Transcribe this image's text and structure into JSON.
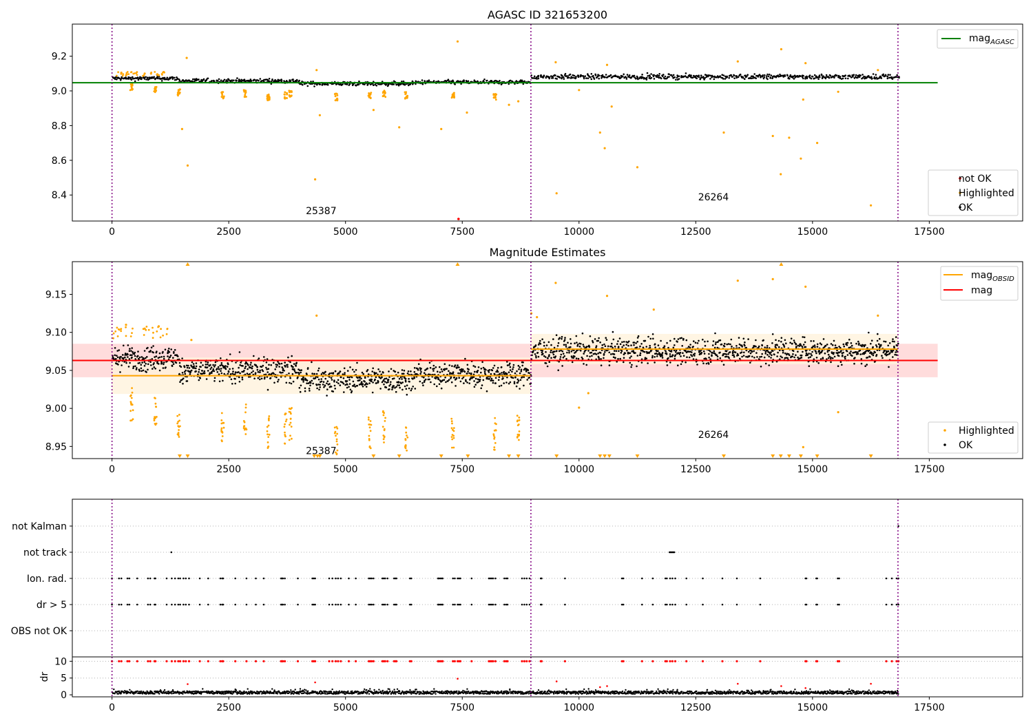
{
  "chart_data": [
    {
      "id": "top",
      "type": "scatter",
      "title": "AGASC ID 321653200",
      "xlim": [
        -850,
        19500
      ],
      "ylim": [
        8.25,
        9.385
      ],
      "xticks": [
        0,
        2500,
        5000,
        7500,
        10000,
        12500,
        15000,
        17500
      ],
      "xtick_labels": [
        "0",
        "2500",
        "5000",
        "7500",
        "10000",
        "12500",
        "15000",
        "17500"
      ],
      "yticks": [
        8.4,
        8.6,
        8.8,
        9.0,
        9.2
      ],
      "ytick_labels": [
        "8.4",
        "8.6",
        "8.8",
        "9.0",
        "9.2"
      ],
      "obsid_boundaries": [
        0,
        8970,
        16830
      ],
      "obsid_labels": [
        {
          "text": "25387",
          "x": 4150,
          "y": 8.29
        },
        {
          "text": "26264",
          "x": 12550,
          "y": 8.37
        }
      ],
      "agasc_line": {
        "name": "mag_AGASC",
        "value": 9.047,
        "x": [
          -850,
          17680
        ],
        "color": "#008000"
      },
      "ok_bands": [
        {
          "x0": 0,
          "x1": 1400,
          "mean": 9.072,
          "spread": 0.012
        },
        {
          "x0": 1420,
          "x1": 4000,
          "mean": 9.058,
          "spread": 0.012
        },
        {
          "x0": 4000,
          "x1": 6500,
          "mean": 9.042,
          "spread": 0.012
        },
        {
          "x0": 6500,
          "x1": 8970,
          "mean": 9.05,
          "spread": 0.012
        },
        {
          "x0": 8980,
          "x1": 16830,
          "mean": 9.082,
          "spread": 0.014
        }
      ],
      "highlighted_points": [
        [
          1600,
          9.19
        ],
        [
          1500,
          8.78
        ],
        [
          1620,
          8.57
        ],
        [
          4350,
          8.49
        ],
        [
          4380,
          9.12
        ],
        [
          4450,
          8.86
        ],
        [
          5600,
          8.89
        ],
        [
          6150,
          8.79
        ],
        [
          7050,
          8.78
        ],
        [
          7400,
          9.285
        ],
        [
          7600,
          8.875
        ],
        [
          8500,
          8.92
        ],
        [
          8700,
          8.94
        ],
        [
          9500,
          9.165
        ],
        [
          9520,
          8.41
        ],
        [
          10000,
          9.005
        ],
        [
          10450,
          8.76
        ],
        [
          10550,
          8.67
        ],
        [
          10600,
          9.15
        ],
        [
          10700,
          8.91
        ],
        [
          11250,
          8.56
        ],
        [
          13100,
          8.76
        ],
        [
          13400,
          9.17
        ],
        [
          14150,
          8.74
        ],
        [
          14320,
          8.52
        ],
        [
          14330,
          9.24
        ],
        [
          14500,
          8.73
        ],
        [
          14750,
          8.61
        ],
        [
          14800,
          8.95
        ],
        [
          14850,
          9.16
        ],
        [
          15100,
          8.7
        ],
        [
          15550,
          8.995
        ],
        [
          16250,
          8.34
        ],
        [
          200,
          9.105
        ],
        [
          300,
          9.09
        ],
        [
          700,
          9.1
        ],
        [
          1000,
          9.09
        ],
        [
          16400,
          9.12
        ]
      ],
      "dip_clusters": [
        [
          420,
          9.02
        ],
        [
          930,
          9.005
        ],
        [
          1430,
          8.99
        ],
        [
          2370,
          8.975
        ],
        [
          2850,
          8.985
        ],
        [
          3350,
          8.965
        ],
        [
          3720,
          8.975
        ],
        [
          3820,
          8.985
        ],
        [
          4800,
          8.965
        ],
        [
          5520,
          8.975
        ],
        [
          5830,
          8.985
        ],
        [
          6300,
          8.975
        ],
        [
          7300,
          8.975
        ],
        [
          8200,
          8.965
        ]
      ],
      "not_ok_points": [
        [
          7420,
          8.262
        ]
      ],
      "legend_top": [
        {
          "name": "mag",
          "subscript": "AGASC",
          "color": "#008000"
        }
      ],
      "legend_bottom": [
        {
          "name": "not OK",
          "color": "#ff0000"
        },
        {
          "name": "Highlighted",
          "color": "#ffa500"
        },
        {
          "name": "OK",
          "color": "#000000"
        }
      ]
    },
    {
      "id": "middle",
      "type": "scatter",
      "title": "Magnitude Estimates",
      "xlim": [
        -850,
        19500
      ],
      "ylim": [
        8.934,
        9.193
      ],
      "xticks": [
        0,
        2500,
        5000,
        7500,
        10000,
        12500,
        15000,
        17500
      ],
      "xtick_labels": [
        "0",
        "2500",
        "5000",
        "7500",
        "10000",
        "12500",
        "15000",
        "17500"
      ],
      "yticks": [
        8.95,
        9.0,
        9.05,
        9.1,
        9.15
      ],
      "ytick_labels": [
        "8.95",
        "9.00",
        "9.05",
        "9.10",
        "9.15"
      ],
      "obsid_boundaries": [
        0,
        8970,
        16830
      ],
      "obsid_labels": [
        {
          "text": "25387",
          "x": 4150,
          "y": 8.94
        },
        {
          "text": "26264",
          "x": 12550,
          "y": 8.961
        }
      ],
      "mag_line": {
        "name": "mag",
        "value": 9.063,
        "band": [
          9.041,
          9.085
        ],
        "x": [
          -850,
          17680
        ],
        "color": "#ff0000"
      },
      "obsid_mags": [
        {
          "x0": 0,
          "x1": 8970,
          "value": 9.043,
          "band": [
            9.019,
            9.067
          ]
        },
        {
          "x0": 8970,
          "x1": 16830,
          "value": 9.078,
          "band": [
            9.058,
            9.098
          ]
        }
      ],
      "ok_bands": [
        {
          "x0": 0,
          "x1": 1400,
          "mean": 9.066,
          "spread": 0.016
        },
        {
          "x0": 1420,
          "x1": 4000,
          "mean": 9.05,
          "spread": 0.016
        },
        {
          "x0": 4000,
          "x1": 6500,
          "mean": 9.038,
          "spread": 0.016
        },
        {
          "x0": 6500,
          "x1": 8970,
          "mean": 9.045,
          "spread": 0.016
        },
        {
          "x0": 8980,
          "x1": 16830,
          "mean": 9.076,
          "spread": 0.017
        }
      ],
      "highlighted_points": [
        [
          4380,
          9.122
        ],
        [
          9500,
          9.165
        ],
        [
          10000,
          9.001
        ],
        [
          10200,
          9.02
        ],
        [
          10600,
          9.148
        ],
        [
          13400,
          9.168
        ],
        [
          14150,
          9.17
        ],
        [
          14850,
          9.16
        ],
        [
          15550,
          8.995
        ],
        [
          14800,
          8.949
        ],
        [
          11600,
          9.13
        ],
        [
          300,
          9.11
        ],
        [
          700,
          9.105
        ],
        [
          1000,
          9.108
        ],
        [
          8980,
          9.125
        ],
        [
          9100,
          9.12
        ],
        [
          16400,
          9.122
        ],
        [
          1700,
          9.09
        ]
      ],
      "dip_clusters": [
        [
          420,
          9.005
        ],
        [
          930,
          8.995
        ],
        [
          1430,
          8.985
        ],
        [
          2370,
          8.975
        ],
        [
          2850,
          8.985
        ],
        [
          3350,
          8.97
        ],
        [
          3720,
          8.975
        ],
        [
          3820,
          8.98
        ],
        [
          4800,
          8.96
        ],
        [
          5520,
          8.97
        ],
        [
          5830,
          8.975
        ],
        [
          6300,
          8.965
        ],
        [
          7300,
          8.97
        ],
        [
          8200,
          8.965
        ],
        [
          8700,
          8.975
        ]
      ],
      "low_markers": [
        1450,
        1620,
        4330,
        4400,
        4450,
        5600,
        6150,
        7050,
        7620,
        8500,
        8700,
        9520,
        10450,
        10550,
        10650,
        11250,
        13100,
        14150,
        14320,
        14500,
        14750,
        15100,
        16250
      ],
      "high_markers": [
        1620,
        7400,
        14330
      ],
      "legend_top": [
        {
          "name": "mag",
          "subscript": "OBSID",
          "color": "#ffa500"
        },
        {
          "name": "mag",
          "subscript": "",
          "color": "#ff0000"
        }
      ],
      "legend_bottom": [
        {
          "name": "Highlighted",
          "color": "#ffa500"
        },
        {
          "name": "OK",
          "color": "#000000"
        }
      ]
    },
    {
      "id": "flags",
      "type": "scatter",
      "xlim": [
        -850,
        19500
      ],
      "categories": [
        "not Kalman",
        "not track",
        "Ion. rad.",
        "dr > 5",
        "OBS not OK"
      ],
      "obsid_boundaries": [
        0,
        8970,
        16830
      ],
      "not_track_x": [
        1270,
        11940,
        11960,
        11980,
        12000,
        12020,
        12040
      ],
      "not_kalman_x": [
        16840
      ],
      "flag_x": [
        0,
        150,
        200,
        330,
        370,
        540,
        770,
        820,
        910,
        930,
        1170,
        1280,
        1350,
        1420,
        1460,
        1530,
        1580,
        1650,
        1880,
        2060,
        2320,
        2360,
        2380,
        2640,
        2880,
        3080,
        3250,
        3620,
        3640,
        3660,
        3700,
        3980,
        4290,
        4320,
        4350,
        4650,
        4720,
        4790,
        4840,
        4900,
        5070,
        5220,
        5500,
        5530,
        5560,
        5600,
        5790,
        5820,
        5850,
        5900,
        6040,
        6070,
        6090,
        6380,
        6410,
        6980,
        7000,
        7030,
        7060,
        7080,
        7300,
        7340,
        7400,
        7430,
        7460,
        7700,
        8070,
        8100,
        8130,
        8160,
        8210,
        8400,
        8440,
        8470,
        8780,
        8830,
        8880,
        8940,
        9180,
        9200,
        9700,
        10920,
        10950,
        11350,
        11580,
        11850,
        11880,
        11950,
        12000,
        12060,
        12300,
        12650,
        13070,
        13380,
        13880,
        14850,
        14870,
        15080,
        15100,
        15540,
        15570,
        16580,
        16700,
        16800,
        16840
      ],
      "spike_x": [
        1620,
        4350,
        7400,
        9520,
        10450,
        10600,
        13400,
        14330,
        14850,
        16250
      ]
    },
    {
      "id": "dr",
      "type": "scatter",
      "ylabel": "dr",
      "xlim": [
        -850,
        19500
      ],
      "ylim": [
        -0.6,
        11.3
      ],
      "xticks": [
        0,
        2500,
        5000,
        7500,
        10000,
        12500,
        15000,
        17500
      ],
      "xtick_labels": [
        "0",
        "2500",
        "5000",
        "7500",
        "10000",
        "12500",
        "15000",
        "17500"
      ],
      "yticks": [
        0,
        5,
        10
      ],
      "ytick_labels": [
        "0",
        "5",
        "10"
      ],
      "threshold": 10,
      "obsid_boundaries": [
        0,
        8970,
        16830
      ],
      "typical_dr": [
        0.25,
        1.1
      ],
      "spikes": [
        [
          1620,
          3.2
        ],
        [
          4350,
          3.7
        ],
        [
          7400,
          4.8
        ],
        [
          9520,
          4.0
        ],
        [
          10450,
          2.3
        ],
        [
          10600,
          2.6
        ],
        [
          13400,
          3.3
        ],
        [
          14330,
          2.6
        ],
        [
          14850,
          2.0
        ],
        [
          16250,
          3.3
        ]
      ]
    }
  ],
  "colors": {
    "ok": "#000000",
    "highlighted": "#ffa500",
    "not_ok": "#ff0000",
    "agasc": "#008000",
    "obsid_boundary": "#800080",
    "mag_band": "#ffdcdc",
    "obsid_band": "#fff2dc",
    "grid": "#b0b0b0"
  }
}
